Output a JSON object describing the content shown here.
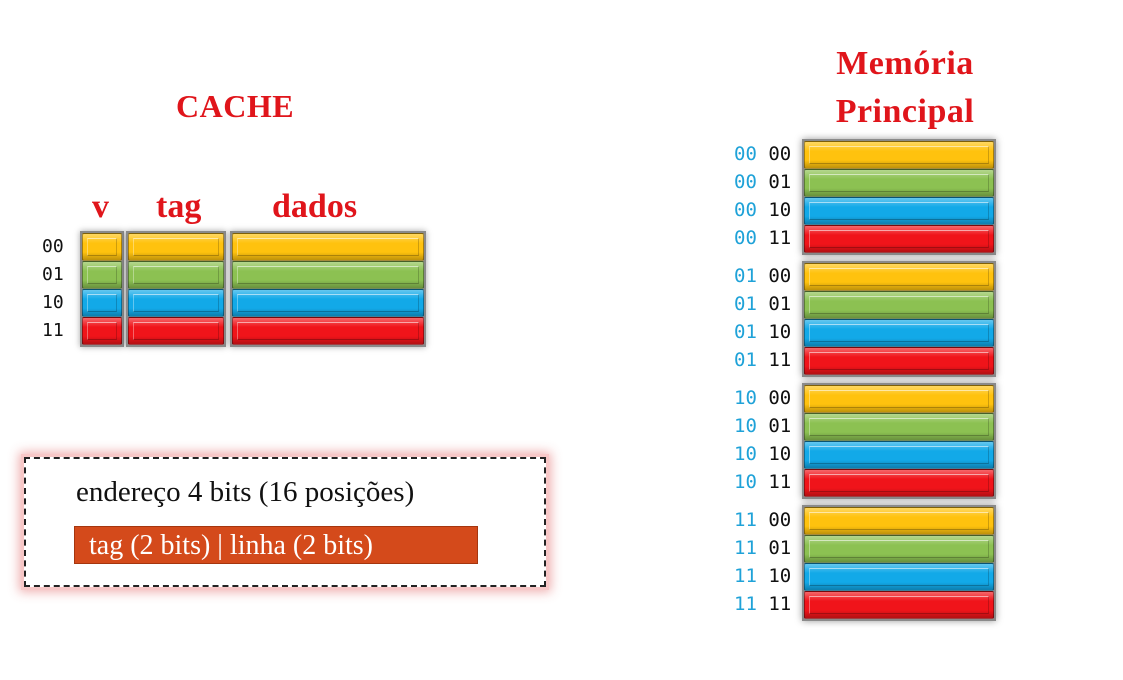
{
  "cache": {
    "title": "CACHE",
    "col_v": "v",
    "col_tag": "tag",
    "col_dados": "dados",
    "lines": [
      "00",
      "01",
      "10",
      "11"
    ]
  },
  "memory": {
    "title_line1": "Memória",
    "title_line2": "Principal",
    "groups": [
      {
        "tag": "00",
        "lines": [
          "00",
          "01",
          "10",
          "11"
        ]
      },
      {
        "tag": "01",
        "lines": [
          "00",
          "01",
          "10",
          "11"
        ]
      },
      {
        "tag": "10",
        "lines": [
          "00",
          "01",
          "10",
          "11"
        ]
      },
      {
        "tag": "11",
        "lines": [
          "00",
          "01",
          "10",
          "11"
        ]
      }
    ]
  },
  "address": {
    "description": "endereço 4 bits (16 posições)",
    "format": "tag (2 bits) | linha (2 bits)"
  },
  "colors": {
    "row_colors": [
      "#ffc20e",
      "#8cc152",
      "#12a9e8",
      "#f0141a"
    ],
    "title_red": "#e0151b",
    "tag_bits_blue": "#1fa2d8",
    "format_bar": "#d44a1b"
  }
}
